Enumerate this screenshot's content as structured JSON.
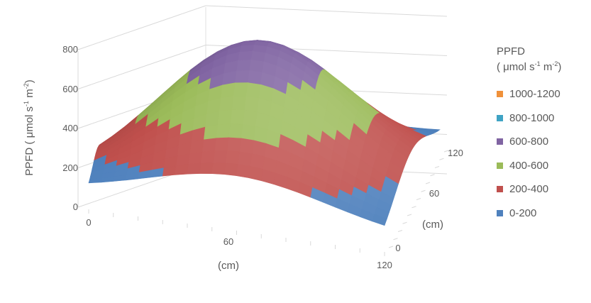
{
  "chart_data": {
    "type": "surface3d",
    "title": "",
    "zlabel": {
      "main": "PPFD ( μmol s",
      "sup1": "-1",
      "mid": " m",
      "sup2": "-2",
      "end": ")"
    },
    "zlim": [
      0,
      800
    ],
    "z_ticks": [
      "0",
      "200",
      "400",
      "600",
      "800"
    ],
    "x_axis": {
      "label": "(cm)",
      "ticks": [
        "0",
        "60",
        "120"
      ],
      "range": [
        0,
        120
      ]
    },
    "y_axis": {
      "label": "(cm)",
      "ticks": [
        "0",
        "60",
        "120"
      ],
      "range": [
        0,
        120
      ]
    },
    "surface": {
      "shape": "single peak centered on the area",
      "peak_ppfd": 780,
      "peak_x": 60,
      "peak_y": 60,
      "corner_ppfd": 45
    },
    "legend": {
      "title_line1": "PPFD",
      "title_line2": {
        "main": "( μmol s",
        "sup1": "-1",
        "mid": " m",
        "sup2": "-2",
        "end": ")"
      },
      "placement": "right",
      "items": [
        {
          "label": "1000-1200",
          "color": "#F0913A"
        },
        {
          "label": "800-1000",
          "color": "#3FA3C4"
        },
        {
          "label": "600-800",
          "color": "#8064A2"
        },
        {
          "label": "400-600",
          "color": "#9BBB59"
        },
        {
          "label": "200-400",
          "color": "#C0504D"
        },
        {
          "label": "0-200",
          "color": "#4F81BD"
        }
      ]
    },
    "bands": [
      {
        "min": 0,
        "max": 200,
        "color": "#4F81BD"
      },
      {
        "min": 200,
        "max": 400,
        "color": "#C0504D"
      },
      {
        "min": 400,
        "max": 600,
        "color": "#9BBB59"
      },
      {
        "min": 600,
        "max": 800,
        "color": "#8064A2"
      },
      {
        "min": 800,
        "max": 1000,
        "color": "#3FA3C4"
      },
      {
        "min": 1000,
        "max": 1200,
        "color": "#F0913A"
      }
    ]
  }
}
